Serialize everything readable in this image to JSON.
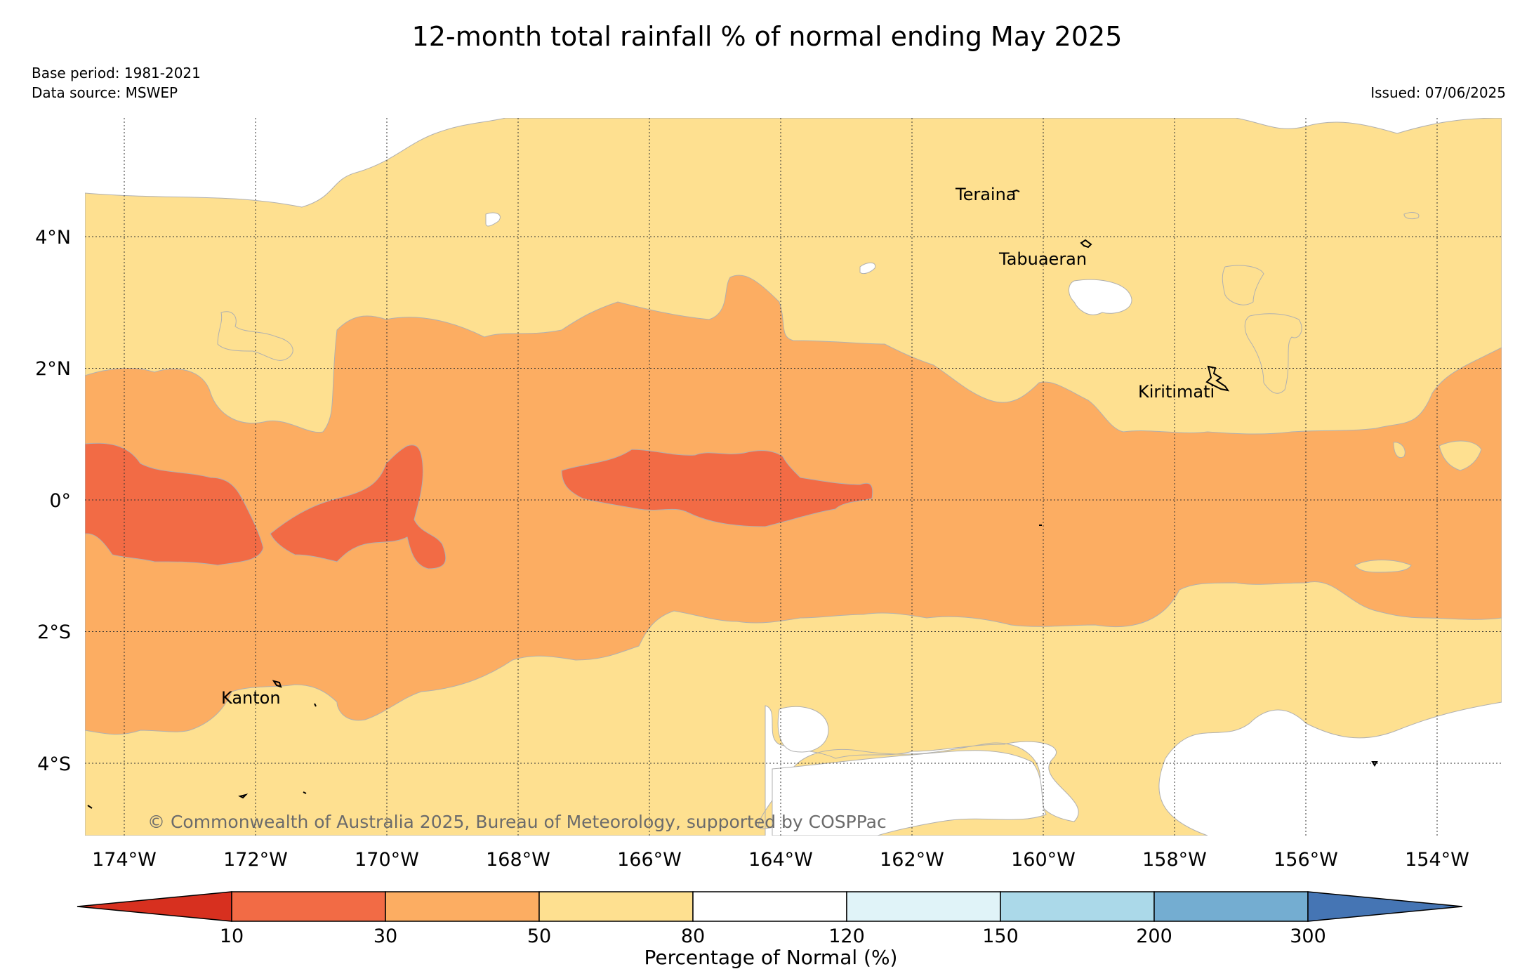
{
  "title": "12-month total rainfall % of normal ending May 2025",
  "meta": {
    "base_period": "Base period: 1981-2021",
    "data_source": "Data source: MSWEP",
    "issued": "Issued: 07/06/2025"
  },
  "map": {
    "lon_range": [
      -174.6,
      -153.0
    ],
    "lat_range": [
      -5.1,
      5.8
    ],
    "lat_labels": [
      "4°N",
      "2°N",
      "0°",
      "2°S",
      "4°S"
    ],
    "lon_labels": [
      "174°W",
      "172°W",
      "170°W",
      "168°W",
      "166°W",
      "164°W",
      "162°W",
      "160°W",
      "158°W",
      "156°W",
      "154°W"
    ],
    "islands": [
      {
        "name": "Teraina",
        "lon": -160.39,
        "lat": 4.69
      },
      {
        "name": "Tabuaeran",
        "lon": -159.35,
        "lat": 3.86
      },
      {
        "name": "Kiritimati",
        "lon": -157.4,
        "lat": 1.87
      },
      {
        "name": "Kanton",
        "lon": -171.7,
        "lat": -2.82
      }
    ],
    "copyright": "© Commonwealth of Australia 2025, Bureau of Meteorology, supported by COSPPac"
  },
  "legend": {
    "title": "Percentage of Normal (%)",
    "ticks": [
      "10",
      "30",
      "50",
      "80",
      "120",
      "150",
      "200",
      "300"
    ],
    "colors": [
      "#d7301f",
      "#f26b45",
      "#fcad62",
      "#fee090",
      "#ffffff",
      "#e0f3f8",
      "#abd9e9",
      "#74add1",
      "#4575b4"
    ]
  }
}
